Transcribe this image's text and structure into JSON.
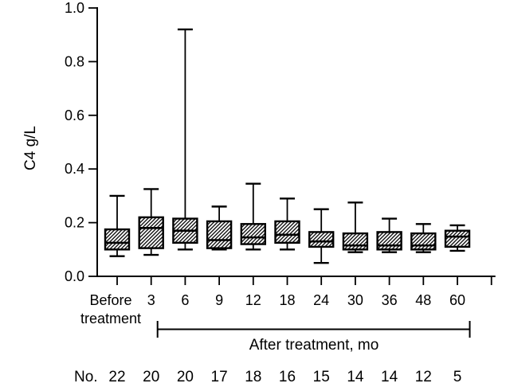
{
  "figure": {
    "background": "#ffffff",
    "ink_color": "#000000"
  },
  "chart_data": {
    "type": "box",
    "title": "",
    "ylabel": "C4 g/L",
    "xlabel": "",
    "ylim": [
      0.0,
      1.0
    ],
    "ytick_labels": [
      "0.0",
      "0.2",
      "0.4",
      "0.6",
      "0.8",
      "1.0"
    ],
    "grid": false,
    "legend": false,
    "box_fill": "diagonal-hatch",
    "categories": [
      "Before treatment",
      "3",
      "6",
      "9",
      "12",
      "18",
      "24",
      "30",
      "36",
      "48",
      "60"
    ],
    "x_group_label": "After treatment, mo",
    "x_group_span": [
      "3",
      "60"
    ],
    "count_row_label": "No.",
    "counts": [
      22,
      20,
      20,
      17,
      18,
      16,
      15,
      14,
      14,
      12,
      5
    ],
    "boxes": [
      {
        "category": "Before treatment",
        "min": 0.075,
        "q1": 0.1,
        "median": 0.125,
        "q3": 0.175,
        "max": 0.3
      },
      {
        "category": "3",
        "min": 0.08,
        "q1": 0.105,
        "median": 0.18,
        "q3": 0.22,
        "max": 0.325
      },
      {
        "category": "6",
        "min": 0.1,
        "q1": 0.125,
        "median": 0.17,
        "q3": 0.215,
        "max": 0.92
      },
      {
        "category": "9",
        "min": 0.1,
        "q1": 0.105,
        "median": 0.135,
        "q3": 0.205,
        "max": 0.26
      },
      {
        "category": "12",
        "min": 0.1,
        "q1": 0.12,
        "median": 0.145,
        "q3": 0.195,
        "max": 0.345
      },
      {
        "category": "18",
        "min": 0.1,
        "q1": 0.125,
        "median": 0.155,
        "q3": 0.205,
        "max": 0.29
      },
      {
        "category": "24",
        "min": 0.05,
        "q1": 0.11,
        "median": 0.13,
        "q3": 0.165,
        "max": 0.25
      },
      {
        "category": "30",
        "min": 0.09,
        "q1": 0.1,
        "median": 0.115,
        "q3": 0.16,
        "max": 0.275
      },
      {
        "category": "36",
        "min": 0.09,
        "q1": 0.1,
        "median": 0.115,
        "q3": 0.165,
        "max": 0.215
      },
      {
        "category": "48",
        "min": 0.09,
        "q1": 0.1,
        "median": 0.115,
        "q3": 0.16,
        "max": 0.195
      },
      {
        "category": "60",
        "min": 0.095,
        "q1": 0.11,
        "median": 0.148,
        "q3": 0.17,
        "max": 0.19
      }
    ]
  }
}
